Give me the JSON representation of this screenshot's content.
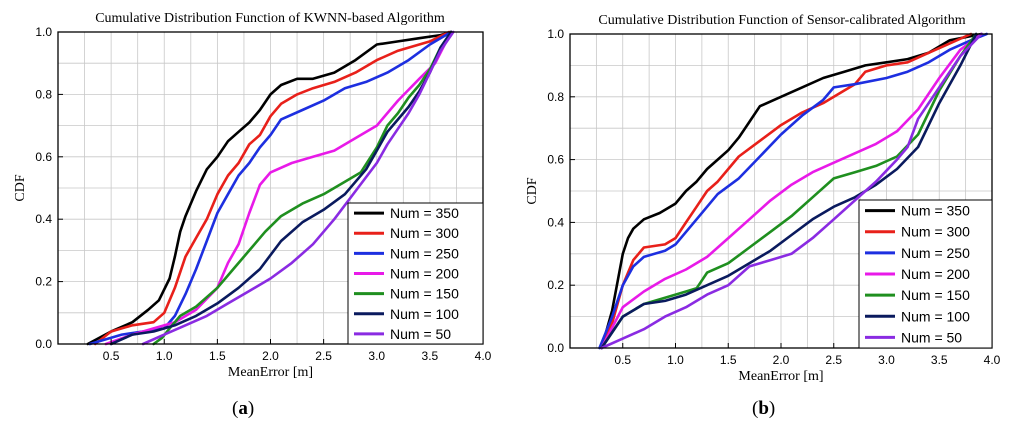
{
  "chart_data": [
    {
      "type": "line",
      "title": "Cumulative Distribution Function of KWNN-based Algorithm",
      "xlabel": "MeanError [m]",
      "ylabel": "CDF",
      "xlim": [
        0.0,
        4.0
      ],
      "ylim": [
        0.0,
        1.0
      ],
      "xticks": [
        "0.5",
        "1.0",
        "1.5",
        "2.0",
        "2.5",
        "3.0",
        "3.5",
        "4.0"
      ],
      "yticks": [
        "0.0",
        "0.2",
        "0.4",
        "0.6",
        "0.8",
        "1.0"
      ],
      "grid": true,
      "legend_position": "bottom-right",
      "series": [
        {
          "name": "Num = 350",
          "color": "#000000",
          "x": [
            0.28,
            0.5,
            0.7,
            0.85,
            0.95,
            1.05,
            1.1,
            1.15,
            1.2,
            1.3,
            1.4,
            1.5,
            1.6,
            1.7,
            1.8,
            1.9,
            2.0,
            2.1,
            2.25,
            2.4,
            2.6,
            2.8,
            3.0,
            3.2,
            3.4,
            3.6,
            3.7
          ],
          "y": [
            0.0,
            0.04,
            0.07,
            0.11,
            0.14,
            0.21,
            0.28,
            0.36,
            0.41,
            0.49,
            0.56,
            0.6,
            0.65,
            0.68,
            0.71,
            0.75,
            0.8,
            0.83,
            0.85,
            0.85,
            0.87,
            0.91,
            0.96,
            0.97,
            0.98,
            0.99,
            1.0
          ]
        },
        {
          "name": "Num = 300",
          "color": "#e8201a",
          "x": [
            0.35,
            0.5,
            0.7,
            0.9,
            1.0,
            1.1,
            1.2,
            1.3,
            1.4,
            1.5,
            1.6,
            1.7,
            1.8,
            1.9,
            2.0,
            2.1,
            2.25,
            2.4,
            2.6,
            2.8,
            3.0,
            3.2,
            3.5,
            3.68
          ],
          "y": [
            0.0,
            0.04,
            0.06,
            0.07,
            0.1,
            0.18,
            0.28,
            0.34,
            0.4,
            0.48,
            0.54,
            0.58,
            0.64,
            0.67,
            0.73,
            0.77,
            0.8,
            0.82,
            0.84,
            0.87,
            0.91,
            0.94,
            0.97,
            1.0
          ]
        },
        {
          "name": "Num = 250",
          "color": "#1d2fe0",
          "x": [
            0.3,
            0.6,
            0.8,
            1.0,
            1.1,
            1.2,
            1.3,
            1.4,
            1.5,
            1.6,
            1.7,
            1.8,
            1.9,
            2.0,
            2.1,
            2.3,
            2.5,
            2.7,
            2.9,
            3.1,
            3.3,
            3.5,
            3.7
          ],
          "y": [
            0.0,
            0.03,
            0.04,
            0.05,
            0.09,
            0.16,
            0.24,
            0.33,
            0.42,
            0.48,
            0.54,
            0.58,
            0.63,
            0.67,
            0.72,
            0.75,
            0.78,
            0.82,
            0.84,
            0.87,
            0.91,
            0.96,
            1.0
          ]
        },
        {
          "name": "Num = 200",
          "color": "#e81ae8",
          "x": [
            0.45,
            0.7,
            0.9,
            1.1,
            1.3,
            1.5,
            1.6,
            1.7,
            1.8,
            1.9,
            2.0,
            2.2,
            2.4,
            2.6,
            2.8,
            3.0,
            3.2,
            3.4,
            3.55,
            3.7
          ],
          "y": [
            0.0,
            0.03,
            0.05,
            0.07,
            0.11,
            0.18,
            0.26,
            0.32,
            0.42,
            0.51,
            0.55,
            0.58,
            0.6,
            0.62,
            0.66,
            0.7,
            0.78,
            0.85,
            0.9,
            1.0
          ]
        },
        {
          "name": "Num = 150",
          "color": "#1f8f1f",
          "x": [
            0.9,
            0.98,
            1.05,
            1.15,
            1.3,
            1.5,
            1.65,
            1.8,
            1.95,
            2.1,
            2.3,
            2.5,
            2.7,
            2.85,
            3.0,
            3.1,
            3.2,
            3.3,
            3.4,
            3.5,
            3.6,
            3.7
          ],
          "y": [
            0.0,
            0.02,
            0.05,
            0.09,
            0.12,
            0.18,
            0.24,
            0.3,
            0.36,
            0.41,
            0.45,
            0.48,
            0.52,
            0.55,
            0.63,
            0.7,
            0.74,
            0.79,
            0.83,
            0.88,
            0.95,
            1.0
          ]
        },
        {
          "name": "Num = 100",
          "color": "#0a1a5e",
          "x": [
            0.5,
            0.7,
            0.9,
            1.1,
            1.3,
            1.5,
            1.7,
            1.9,
            2.1,
            2.3,
            2.5,
            2.7,
            2.9,
            3.0,
            3.1,
            3.2,
            3.3,
            3.4,
            3.5,
            3.6,
            3.7
          ],
          "y": [
            0.0,
            0.03,
            0.04,
            0.06,
            0.09,
            0.13,
            0.18,
            0.24,
            0.33,
            0.39,
            0.43,
            0.48,
            0.56,
            0.62,
            0.68,
            0.72,
            0.76,
            0.81,
            0.87,
            0.95,
            1.0
          ]
        },
        {
          "name": "Num =  50",
          "color": "#8a2be2",
          "x": [
            0.8,
            1.0,
            1.2,
            1.4,
            1.6,
            1.8,
            2.0,
            2.2,
            2.4,
            2.6,
            2.8,
            3.0,
            3.1,
            3.2,
            3.3,
            3.4,
            3.5,
            3.6,
            3.72
          ],
          "y": [
            0.0,
            0.03,
            0.06,
            0.09,
            0.13,
            0.17,
            0.21,
            0.26,
            0.32,
            0.4,
            0.49,
            0.58,
            0.64,
            0.69,
            0.74,
            0.8,
            0.87,
            0.94,
            1.0
          ]
        }
      ]
    },
    {
      "type": "line",
      "title": "Cumulative Distribution Function of  Sensor-calibrated Algorithm",
      "xlabel": "MeanError [m]",
      "ylabel": "CDF",
      "xlim": [
        0.0,
        4.0
      ],
      "ylim": [
        0.0,
        1.0
      ],
      "xticks": [
        "0.5",
        "1.0",
        "1.5",
        "2.0",
        "2.5",
        "3.0",
        "3.5",
        "4.0"
      ],
      "yticks": [
        "0.0",
        "0.2",
        "0.4",
        "0.6",
        "0.8",
        "1.0"
      ],
      "grid": true,
      "legend_position": "bottom-right",
      "series": [
        {
          "name": "Num = 350",
          "color": "#000000",
          "x": [
            0.3,
            0.4,
            0.5,
            0.55,
            0.6,
            0.7,
            0.85,
            1.0,
            1.1,
            1.2,
            1.3,
            1.4,
            1.5,
            1.6,
            1.7,
            1.8,
            2.0,
            2.2,
            2.4,
            2.6,
            2.8,
            3.0,
            3.2,
            3.4,
            3.6,
            3.9
          ],
          "y": [
            0.0,
            0.12,
            0.3,
            0.35,
            0.38,
            0.41,
            0.43,
            0.46,
            0.5,
            0.53,
            0.57,
            0.6,
            0.63,
            0.67,
            0.72,
            0.77,
            0.8,
            0.83,
            0.86,
            0.88,
            0.9,
            0.91,
            0.92,
            0.94,
            0.98,
            1.0
          ]
        },
        {
          "name": "Num = 300",
          "color": "#e8201a",
          "x": [
            0.3,
            0.4,
            0.5,
            0.6,
            0.7,
            0.9,
            1.0,
            1.1,
            1.2,
            1.3,
            1.4,
            1.5,
            1.6,
            1.8,
            2.0,
            2.2,
            2.4,
            2.6,
            2.7,
            2.8,
            3.0,
            3.2,
            3.4,
            3.6,
            3.8
          ],
          "y": [
            0.0,
            0.08,
            0.2,
            0.28,
            0.32,
            0.33,
            0.35,
            0.4,
            0.45,
            0.5,
            0.53,
            0.57,
            0.61,
            0.66,
            0.71,
            0.75,
            0.78,
            0.82,
            0.84,
            0.88,
            0.9,
            0.91,
            0.94,
            0.97,
            1.0
          ]
        },
        {
          "name": "Num = 250",
          "color": "#1d2fe0",
          "x": [
            0.28,
            0.4,
            0.5,
            0.6,
            0.7,
            0.9,
            1.0,
            1.2,
            1.4,
            1.6,
            1.8,
            2.0,
            2.2,
            2.4,
            2.5,
            2.7,
            3.0,
            3.2,
            3.4,
            3.6,
            3.8,
            3.95
          ],
          "y": [
            0.0,
            0.1,
            0.2,
            0.26,
            0.29,
            0.31,
            0.33,
            0.41,
            0.49,
            0.54,
            0.61,
            0.68,
            0.74,
            0.79,
            0.83,
            0.84,
            0.86,
            0.88,
            0.91,
            0.95,
            0.98,
            1.0
          ]
        },
        {
          "name": "Num = 200",
          "color": "#e81ae8",
          "x": [
            0.3,
            0.5,
            0.7,
            0.9,
            1.1,
            1.3,
            1.5,
            1.7,
            1.9,
            2.1,
            2.3,
            2.5,
            2.7,
            2.9,
            3.1,
            3.3,
            3.5,
            3.7,
            3.9
          ],
          "y": [
            0.0,
            0.13,
            0.18,
            0.22,
            0.25,
            0.29,
            0.35,
            0.41,
            0.47,
            0.52,
            0.56,
            0.59,
            0.62,
            0.65,
            0.69,
            0.76,
            0.86,
            0.95,
            1.0
          ]
        },
        {
          "name": "Num = 150",
          "color": "#1f8f1f",
          "x": [
            0.3,
            0.5,
            0.7,
            0.9,
            1.1,
            1.2,
            1.3,
            1.5,
            1.7,
            1.9,
            2.1,
            2.3,
            2.5,
            2.7,
            2.9,
            3.1,
            3.3,
            3.5,
            3.7,
            3.85
          ],
          "y": [
            0.0,
            0.1,
            0.14,
            0.16,
            0.18,
            0.19,
            0.24,
            0.27,
            0.32,
            0.37,
            0.42,
            0.48,
            0.54,
            0.56,
            0.58,
            0.61,
            0.68,
            0.82,
            0.93,
            1.0
          ]
        },
        {
          "name": "Num = 100",
          "color": "#0a1a5e",
          "x": [
            0.3,
            0.5,
            0.7,
            0.9,
            1.1,
            1.3,
            1.5,
            1.7,
            1.9,
            2.1,
            2.3,
            2.5,
            2.7,
            2.9,
            3.1,
            3.3,
            3.5,
            3.7,
            3.85
          ],
          "y": [
            0.0,
            0.1,
            0.14,
            0.15,
            0.17,
            0.2,
            0.23,
            0.27,
            0.31,
            0.36,
            0.41,
            0.45,
            0.48,
            0.52,
            0.57,
            0.64,
            0.78,
            0.9,
            1.0
          ]
        },
        {
          "name": "Num =  50",
          "color": "#8a2be2",
          "x": [
            0.3,
            0.5,
            0.7,
            0.9,
            1.1,
            1.3,
            1.5,
            1.7,
            1.9,
            2.1,
            2.3,
            2.5,
            2.7,
            2.9,
            3.1,
            3.2,
            3.3,
            3.5,
            3.7,
            3.9
          ],
          "y": [
            0.0,
            0.03,
            0.06,
            0.1,
            0.13,
            0.17,
            0.2,
            0.26,
            0.28,
            0.3,
            0.35,
            0.41,
            0.47,
            0.53,
            0.6,
            0.64,
            0.73,
            0.83,
            0.93,
            1.0
          ]
        }
      ]
    }
  ],
  "captions": {
    "a": {
      "open": "(",
      "letter": "a",
      "close": ")"
    },
    "b": {
      "open": "(",
      "letter": "b",
      "close": ")"
    }
  }
}
